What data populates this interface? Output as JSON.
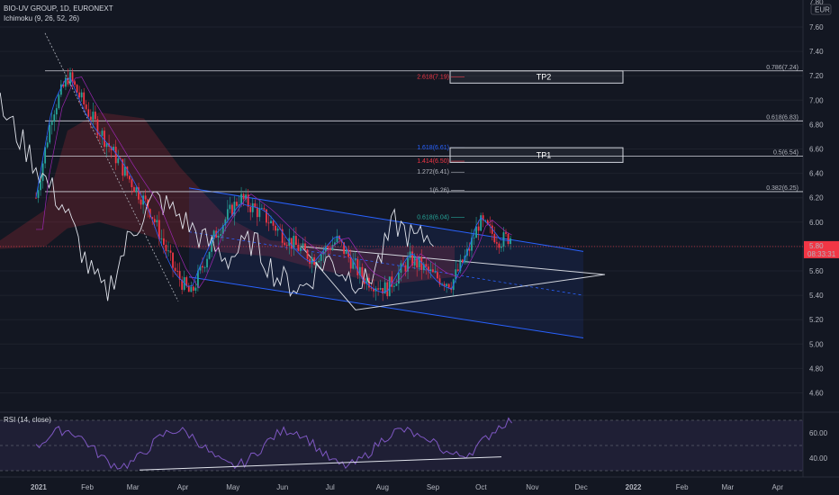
{
  "header": {
    "symbol_line": "BIO-UV GROUP, 1D, EURONEXT",
    "indicator_line": "Ichimoku (9, 26, 52, 26)"
  },
  "rsi": {
    "label": "RSI (14, close)",
    "ticks": [
      "60.00",
      "40.00"
    ]
  },
  "currency": "EUR",
  "price_axis": {
    "top_cut": "7.80",
    "ticks": [
      "7.60",
      "7.40",
      "7.20",
      "7.00",
      "6.80",
      "6.60",
      "6.40",
      "6.20",
      "6.00",
      "5.80",
      "5.60",
      "5.40",
      "5.20",
      "5.00",
      "4.80",
      "4.60"
    ]
  },
  "current_price": {
    "value": "5.80",
    "countdown": "08:33:31",
    "color": "#f23645"
  },
  "time_axis": [
    "2021",
    "Feb",
    "Mar",
    "Apr",
    "May",
    "Jun",
    "Jul",
    "Aug",
    "Sep",
    "Oct",
    "Nov",
    "Dec",
    "2022",
    "Feb",
    "Mar",
    "Apr"
  ],
  "fib_right": [
    {
      "label": "0.786(7.24)",
      "price": 7.24
    },
    {
      "label": "0.618(6.83)",
      "price": 6.83
    },
    {
      "label": "0.5(6.54)",
      "price": 6.54
    },
    {
      "label": "0.382(6.25)",
      "price": 6.25
    }
  ],
  "fib_ext": [
    {
      "label": "2.618(7.19)",
      "price": 7.19,
      "color": "#f23645"
    },
    {
      "label": "1.618(6.61)",
      "price": 6.61,
      "color": "#2962ff"
    },
    {
      "label": "1.414(6.50)",
      "price": 6.5,
      "color": "#f23645"
    },
    {
      "label": "1.272(6.41)",
      "price": 6.41,
      "color": "#b2b5be"
    },
    {
      "label": "1(6.26)",
      "price": 6.26,
      "color": "#b2b5be"
    },
    {
      "label": "0.618(6.04)",
      "price": 6.04,
      "color": "#26a69a"
    }
  ],
  "targets": [
    {
      "label": "TP2",
      "price_top": 7.24,
      "price_bottom": 7.14
    },
    {
      "label": "TP1",
      "price_top": 6.61,
      "price_bottom": 6.49
    }
  ],
  "colors": {
    "bg": "#131722",
    "up": "#26a69a",
    "down": "#f23645",
    "channel": "#2962ff",
    "rsi_line": "#7e57c2"
  }
}
